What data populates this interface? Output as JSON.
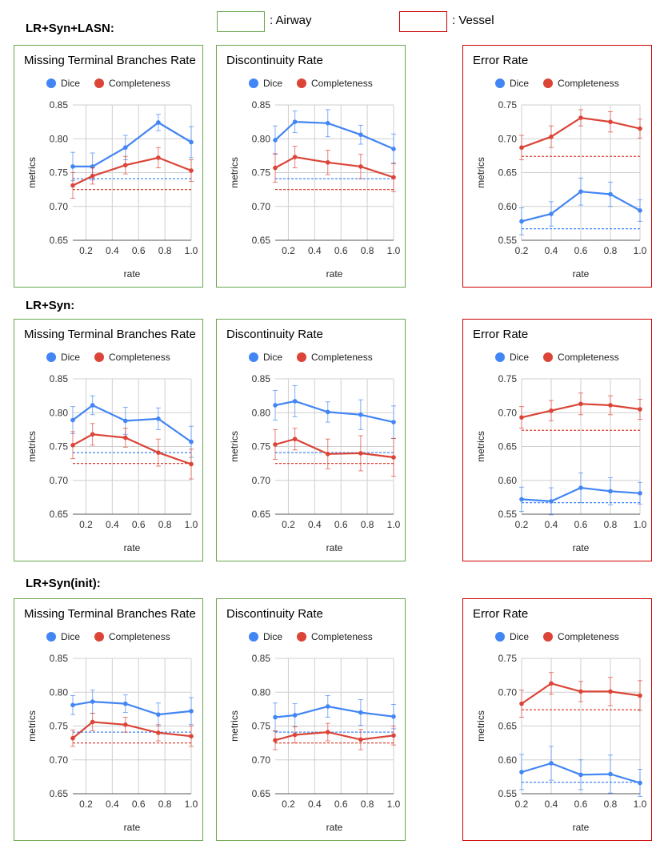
{
  "legend": {
    "airway_label": ": Airway",
    "vessel_label": ": Vessel",
    "airway_color": "#6aa84f",
    "vessel_color": "#cc0000"
  },
  "colors": {
    "dice": "#4285f4",
    "completeness": "#db4437"
  },
  "rows": [
    {
      "title": "LR+Syn+LASN:"
    },
    {
      "title": "LR+Syn:"
    },
    {
      "title": "LR+Syn(init):"
    }
  ],
  "chart_data": [
    {
      "id": "r0c0",
      "type": "line",
      "group": "airway",
      "title": "Missing Terminal Branches Rate",
      "xlabel": "rate",
      "ylabel": "metrics",
      "xlim": [
        0.1,
        1.0
      ],
      "ylim": [
        0.65,
        0.85
      ],
      "xticks": [
        0.2,
        0.4,
        0.6,
        0.8,
        1.0
      ],
      "yticks": [
        0.65,
        0.7,
        0.75,
        0.8,
        0.85
      ],
      "grid": true,
      "x": [
        0.1,
        0.25,
        0.5,
        0.75,
        1.0
      ],
      "series": [
        {
          "name": "Dice",
          "values": [
            0.759,
            0.759,
            0.787,
            0.824,
            0.795
          ],
          "err": [
            0.021,
            0.02,
            0.018,
            0.012,
            0.023
          ],
          "baseline": 0.741
        },
        {
          "name": "Completeness",
          "values": [
            0.731,
            0.745,
            0.761,
            0.772,
            0.753
          ],
          "err": [
            0.019,
            0.012,
            0.013,
            0.015,
            0.016
          ],
          "baseline": 0.725
        }
      ]
    },
    {
      "id": "r0c1",
      "type": "line",
      "group": "airway",
      "title": "Discontinuity Rate",
      "xlabel": "rate",
      "ylabel": "metrics",
      "xlim": [
        0.1,
        1.0
      ],
      "ylim": [
        0.65,
        0.85
      ],
      "xticks": [
        0.2,
        0.4,
        0.6,
        0.8,
        1.0
      ],
      "yticks": [
        0.65,
        0.7,
        0.75,
        0.8,
        0.85
      ],
      "grid": true,
      "x": [
        0.1,
        0.25,
        0.5,
        0.75,
        1.0
      ],
      "series": [
        {
          "name": "Dice",
          "values": [
            0.798,
            0.825,
            0.823,
            0.806,
            0.785
          ],
          "err": [
            0.021,
            0.016,
            0.02,
            0.014,
            0.022
          ],
          "baseline": 0.741
        },
        {
          "name": "Completeness",
          "values": [
            0.757,
            0.773,
            0.765,
            0.759,
            0.743
          ],
          "err": [
            0.021,
            0.016,
            0.018,
            0.018,
            0.021
          ],
          "baseline": 0.725
        }
      ]
    },
    {
      "id": "r0c2",
      "type": "line",
      "group": "vessel",
      "title": "Error Rate",
      "xlabel": "rate",
      "ylabel": "metrics",
      "xlim": [
        0.2,
        1.0
      ],
      "ylim": [
        0.55,
        0.75
      ],
      "xticks": [
        0.2,
        0.4,
        0.6,
        0.8,
        1.0
      ],
      "yticks": [
        0.55,
        0.6,
        0.65,
        0.7,
        0.75
      ],
      "grid": true,
      "x": [
        0.2,
        0.4,
        0.6,
        0.8,
        1.0
      ],
      "series": [
        {
          "name": "Dice",
          "values": [
            0.578,
            0.589,
            0.622,
            0.618,
            0.594
          ],
          "err": [
            0.02,
            0.018,
            0.02,
            0.018,
            0.016
          ],
          "baseline": 0.567
        },
        {
          "name": "Completeness",
          "values": [
            0.687,
            0.703,
            0.731,
            0.725,
            0.715
          ],
          "err": [
            0.018,
            0.016,
            0.012,
            0.015,
            0.014
          ],
          "baseline": 0.674
        }
      ]
    },
    {
      "id": "r1c0",
      "type": "line",
      "group": "airway",
      "title": "Missing Terminal Branches Rate",
      "xlabel": "rate",
      "ylabel": "metrics",
      "xlim": [
        0.1,
        1.0
      ],
      "ylim": [
        0.65,
        0.85
      ],
      "xticks": [
        0.2,
        0.4,
        0.6,
        0.8,
        1.0
      ],
      "yticks": [
        0.65,
        0.7,
        0.75,
        0.8,
        0.85
      ],
      "grid": true,
      "x": [
        0.1,
        0.25,
        0.5,
        0.75,
        1.0
      ],
      "series": [
        {
          "name": "Dice",
          "values": [
            0.789,
            0.811,
            0.788,
            0.791,
            0.757
          ],
          "err": [
            0.02,
            0.014,
            0.02,
            0.016,
            0.023
          ],
          "baseline": 0.741
        },
        {
          "name": "Completeness",
          "values": [
            0.752,
            0.768,
            0.763,
            0.741,
            0.724
          ],
          "err": [
            0.02,
            0.016,
            0.014,
            0.02,
            0.022
          ],
          "baseline": 0.725
        }
      ]
    },
    {
      "id": "r1c1",
      "type": "line",
      "group": "airway",
      "title": "Discontinuity Rate",
      "xlabel": "rate",
      "ylabel": "metrics",
      "xlim": [
        0.1,
        1.0
      ],
      "ylim": [
        0.65,
        0.85
      ],
      "xticks": [
        0.2,
        0.4,
        0.6,
        0.8,
        1.0
      ],
      "yticks": [
        0.65,
        0.7,
        0.75,
        0.8,
        0.85
      ],
      "grid": true,
      "x": [
        0.1,
        0.25,
        0.5,
        0.75,
        1.0
      ],
      "series": [
        {
          "name": "Dice",
          "values": [
            0.811,
            0.817,
            0.801,
            0.797,
            0.786
          ],
          "err": [
            0.022,
            0.023,
            0.015,
            0.022,
            0.024
          ],
          "baseline": 0.741
        },
        {
          "name": "Completeness",
          "values": [
            0.753,
            0.761,
            0.739,
            0.74,
            0.734
          ],
          "err": [
            0.022,
            0.016,
            0.022,
            0.026,
            0.028
          ],
          "baseline": 0.725
        }
      ]
    },
    {
      "id": "r1c2",
      "type": "line",
      "group": "vessel",
      "title": "Error Rate",
      "xlabel": "rate",
      "ylabel": "metrics",
      "xlim": [
        0.2,
        1.0
      ],
      "ylim": [
        0.55,
        0.75
      ],
      "xticks": [
        0.2,
        0.4,
        0.6,
        0.8,
        1.0
      ],
      "yticks": [
        0.55,
        0.6,
        0.65,
        0.7,
        0.75
      ],
      "grid": true,
      "x": [
        0.2,
        0.4,
        0.6,
        0.8,
        1.0
      ],
      "series": [
        {
          "name": "Dice",
          "values": [
            0.572,
            0.569,
            0.589,
            0.584,
            0.581
          ],
          "err": [
            0.018,
            0.02,
            0.022,
            0.02,
            0.016
          ],
          "baseline": 0.567
        },
        {
          "name": "Completeness",
          "values": [
            0.693,
            0.703,
            0.713,
            0.711,
            0.705
          ],
          "err": [
            0.016,
            0.015,
            0.016,
            0.014,
            0.015
          ],
          "baseline": 0.674
        }
      ]
    },
    {
      "id": "r2c0",
      "type": "line",
      "group": "airway",
      "title": "Missing Terminal Branches Rate",
      "xlabel": "rate",
      "ylabel": "metrics",
      "xlim": [
        0.1,
        1.0
      ],
      "ylim": [
        0.65,
        0.85
      ],
      "xticks": [
        0.2,
        0.4,
        0.6,
        0.8,
        1.0
      ],
      "yticks": [
        0.65,
        0.7,
        0.75,
        0.8,
        0.85
      ],
      "grid": true,
      "x": [
        0.1,
        0.25,
        0.5,
        0.75,
        1.0
      ],
      "series": [
        {
          "name": "Dice",
          "values": [
            0.781,
            0.786,
            0.783,
            0.767,
            0.772
          ],
          "err": [
            0.014,
            0.017,
            0.013,
            0.017,
            0.02
          ],
          "baseline": 0.741
        },
        {
          "name": "Completeness",
          "values": [
            0.732,
            0.756,
            0.752,
            0.74,
            0.735
          ],
          "err": [
            0.012,
            0.013,
            0.011,
            0.012,
            0.015
          ],
          "baseline": 0.725
        }
      ]
    },
    {
      "id": "r2c1",
      "type": "line",
      "group": "airway",
      "title": "Discontinuity Rate",
      "xlabel": "rate",
      "ylabel": "metrics",
      "xlim": [
        0.1,
        1.0
      ],
      "ylim": [
        0.65,
        0.85
      ],
      "xticks": [
        0.2,
        0.4,
        0.6,
        0.8,
        1.0
      ],
      "yticks": [
        0.65,
        0.7,
        0.75,
        0.8,
        0.85
      ],
      "grid": true,
      "x": [
        0.1,
        0.25,
        0.5,
        0.75,
        1.0
      ],
      "series": [
        {
          "name": "Dice",
          "values": [
            0.763,
            0.766,
            0.779,
            0.77,
            0.764
          ],
          "err": [
            0.021,
            0.017,
            0.016,
            0.019,
            0.018
          ],
          "baseline": 0.741
        },
        {
          "name": "Completeness",
          "values": [
            0.729,
            0.737,
            0.741,
            0.73,
            0.736
          ],
          "err": [
            0.014,
            0.012,
            0.013,
            0.015,
            0.014
          ],
          "baseline": 0.725
        }
      ]
    },
    {
      "id": "r2c2",
      "type": "line",
      "group": "vessel",
      "title": "Error Rate",
      "xlabel": "rate",
      "ylabel": "metrics",
      "xlim": [
        0.2,
        1.0
      ],
      "ylim": [
        0.55,
        0.75
      ],
      "xticks": [
        0.2,
        0.4,
        0.6,
        0.8,
        1.0
      ],
      "yticks": [
        0.55,
        0.6,
        0.65,
        0.7,
        0.75
      ],
      "grid": true,
      "x": [
        0.2,
        0.4,
        0.6,
        0.8,
        1.0
      ],
      "series": [
        {
          "name": "Dice",
          "values": [
            0.582,
            0.595,
            0.578,
            0.579,
            0.566
          ],
          "err": [
            0.026,
            0.025,
            0.022,
            0.028,
            0.02
          ],
          "baseline": 0.567
        },
        {
          "name": "Completeness",
          "values": [
            0.683,
            0.713,
            0.701,
            0.701,
            0.695
          ],
          "err": [
            0.02,
            0.016,
            0.015,
            0.021,
            0.022
          ],
          "baseline": 0.674
        }
      ]
    }
  ]
}
